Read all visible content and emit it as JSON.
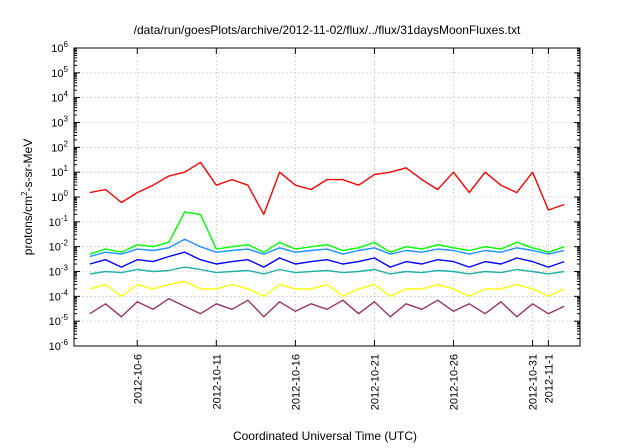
{
  "chart_data": {
    "type": "line",
    "title": "/data/run/goesPlots/archive/2012-11-02/flux/../flux/31daysMoonFluxes.txt",
    "xlabel": "Coordinated Universal Time (UTC)",
    "ylabel": {
      "pre": "protons/cm",
      "sup": "2",
      "post": "-s-sr-MeV"
    },
    "y_scale": "log",
    "ylim": [
      1e-06,
      1000000.0
    ],
    "xlim": [
      "2012-10-02",
      "2012-11-03"
    ],
    "grid": true,
    "y_ticks": [
      {
        "base": "10",
        "exp": "-6"
      },
      {
        "base": "10",
        "exp": "-5"
      },
      {
        "base": "10",
        "exp": "-4"
      },
      {
        "base": "10",
        "exp": "-3"
      },
      {
        "base": "10",
        "exp": "-2"
      },
      {
        "base": "10",
        "exp": "-1"
      },
      {
        "base": "10",
        "exp": "0"
      },
      {
        "base": "10",
        "exp": "1"
      },
      {
        "base": "10",
        "exp": "2"
      },
      {
        "base": "10",
        "exp": "3"
      },
      {
        "base": "10",
        "exp": "4"
      },
      {
        "base": "10",
        "exp": "5"
      },
      {
        "base": "10",
        "exp": "6"
      }
    ],
    "x_ticks": [
      "2012-10-6",
      "2012-10-11",
      "2012-10-16",
      "2012-10-21",
      "2012-10-26",
      "2012-10-31",
      "2012-11-1"
    ],
    "series": [
      {
        "color": "#ff0000",
        "x": [
          "2012-10-03",
          "2012-10-04",
          "2012-10-05",
          "2012-10-06",
          "2012-10-07",
          "2012-10-08",
          "2012-10-09",
          "2012-10-10",
          "2012-10-11",
          "2012-10-12",
          "2012-10-13",
          "2012-10-14",
          "2012-10-15",
          "2012-10-16",
          "2012-10-17",
          "2012-10-18",
          "2012-10-19",
          "2012-10-20",
          "2012-10-21",
          "2012-10-22",
          "2012-10-23",
          "2012-10-24",
          "2012-10-25",
          "2012-10-26",
          "2012-10-27",
          "2012-10-28",
          "2012-10-29",
          "2012-10-30",
          "2012-10-31",
          "2012-11-01",
          "2012-11-02"
        ],
        "values": [
          1.5,
          2,
          0.6,
          1.5,
          3,
          7,
          10,
          25,
          3,
          5,
          3,
          0.2,
          10,
          3,
          2,
          5,
          5,
          3,
          8,
          10,
          15,
          5,
          2,
          10,
          1.5,
          10,
          3,
          1.5,
          10,
          0.3,
          0.5
        ]
      },
      {
        "color": "#00ff00",
        "x": [
          "2012-10-03",
          "2012-10-04",
          "2012-10-05",
          "2012-10-06",
          "2012-10-07",
          "2012-10-08",
          "2012-10-09",
          "2012-10-10",
          "2012-10-11",
          "2012-10-12",
          "2012-10-13",
          "2012-10-14",
          "2012-10-15",
          "2012-10-16",
          "2012-10-17",
          "2012-10-18",
          "2012-10-19",
          "2012-10-20",
          "2012-10-21",
          "2012-10-22",
          "2012-10-23",
          "2012-10-24",
          "2012-10-25",
          "2012-10-26",
          "2012-10-27",
          "2012-10-28",
          "2012-10-29",
          "2012-10-30",
          "2012-10-31",
          "2012-11-01",
          "2012-11-02"
        ],
        "values": [
          0.005,
          0.008,
          0.006,
          0.012,
          0.01,
          0.015,
          0.25,
          0.2,
          0.008,
          0.01,
          0.012,
          0.006,
          0.015,
          0.008,
          0.01,
          0.012,
          0.007,
          0.009,
          0.015,
          0.006,
          0.01,
          0.008,
          0.012,
          0.009,
          0.007,
          0.01,
          0.008,
          0.015,
          0.009,
          0.006,
          0.01
        ]
      },
      {
        "color": "#1e90ff",
        "x": [
          "2012-10-03",
          "2012-10-04",
          "2012-10-05",
          "2012-10-06",
          "2012-10-07",
          "2012-10-08",
          "2012-10-09",
          "2012-10-10",
          "2012-10-11",
          "2012-10-12",
          "2012-10-13",
          "2012-10-14",
          "2012-10-15",
          "2012-10-16",
          "2012-10-17",
          "2012-10-18",
          "2012-10-19",
          "2012-10-20",
          "2012-10-21",
          "2012-10-22",
          "2012-10-23",
          "2012-10-24",
          "2012-10-25",
          "2012-10-26",
          "2012-10-27",
          "2012-10-28",
          "2012-10-29",
          "2012-10-30",
          "2012-10-31",
          "2012-11-01",
          "2012-11-02"
        ],
        "values": [
          0.004,
          0.006,
          0.005,
          0.008,
          0.007,
          0.009,
          0.02,
          0.01,
          0.006,
          0.007,
          0.008,
          0.005,
          0.009,
          0.006,
          0.007,
          0.008,
          0.005,
          0.007,
          0.009,
          0.005,
          0.007,
          0.006,
          0.008,
          0.007,
          0.005,
          0.007,
          0.006,
          0.009,
          0.007,
          0.005,
          0.007
        ]
      },
      {
        "color": "#0000ff",
        "x": [
          "2012-10-03",
          "2012-10-04",
          "2012-10-05",
          "2012-10-06",
          "2012-10-07",
          "2012-10-08",
          "2012-10-09",
          "2012-10-10",
          "2012-10-11",
          "2012-10-12",
          "2012-10-13",
          "2012-10-14",
          "2012-10-15",
          "2012-10-16",
          "2012-10-17",
          "2012-10-18",
          "2012-10-19",
          "2012-10-20",
          "2012-10-21",
          "2012-10-22",
          "2012-10-23",
          "2012-10-24",
          "2012-10-25",
          "2012-10-26",
          "2012-10-27",
          "2012-10-28",
          "2012-10-29",
          "2012-10-30",
          "2012-10-31",
          "2012-11-01",
          "2012-11-02"
        ],
        "values": [
          0.002,
          0.003,
          0.0015,
          0.003,
          0.0025,
          0.004,
          0.006,
          0.003,
          0.002,
          0.0025,
          0.003,
          0.0015,
          0.0035,
          0.002,
          0.0025,
          0.003,
          0.002,
          0.0025,
          0.0035,
          0.0015,
          0.0025,
          0.002,
          0.003,
          0.0025,
          0.0015,
          0.0025,
          0.002,
          0.0035,
          0.0025,
          0.0015,
          0.0025
        ]
      },
      {
        "color": "#20b2aa",
        "x": [
          "2012-10-03",
          "2012-10-04",
          "2012-10-05",
          "2012-10-06",
          "2012-10-07",
          "2012-10-08",
          "2012-10-09",
          "2012-10-10",
          "2012-10-11",
          "2012-10-12",
          "2012-10-13",
          "2012-10-14",
          "2012-10-15",
          "2012-10-16",
          "2012-10-17",
          "2012-10-18",
          "2012-10-19",
          "2012-10-20",
          "2012-10-21",
          "2012-10-22",
          "2012-10-23",
          "2012-10-24",
          "2012-10-25",
          "2012-10-26",
          "2012-10-27",
          "2012-10-28",
          "2012-10-29",
          "2012-10-30",
          "2012-10-31",
          "2012-11-01",
          "2012-11-02"
        ],
        "values": [
          0.0008,
          0.001,
          0.0009,
          0.0012,
          0.001,
          0.0011,
          0.0015,
          0.0012,
          0.0009,
          0.001,
          0.0011,
          0.0008,
          0.0012,
          0.0009,
          0.001,
          0.0011,
          0.0009,
          0.001,
          0.0012,
          0.0008,
          0.001,
          0.0009,
          0.0011,
          0.001,
          0.0008,
          0.001,
          0.0009,
          0.0012,
          0.001,
          0.0008,
          0.001
        ]
      },
      {
        "color": "#ffff00",
        "x": [
          "2012-10-03",
          "2012-10-04",
          "2012-10-05",
          "2012-10-06",
          "2012-10-07",
          "2012-10-08",
          "2012-10-09",
          "2012-10-10",
          "2012-10-11",
          "2012-10-12",
          "2012-10-13",
          "2012-10-14",
          "2012-10-15",
          "2012-10-16",
          "2012-10-17",
          "2012-10-18",
          "2012-10-19",
          "2012-10-20",
          "2012-10-21",
          "2012-10-22",
          "2012-10-23",
          "2012-10-24",
          "2012-10-25",
          "2012-10-26",
          "2012-10-27",
          "2012-10-28",
          "2012-10-29",
          "2012-10-30",
          "2012-10-31",
          "2012-11-01",
          "2012-11-02"
        ],
        "values": [
          0.0002,
          0.0003,
          0.0001,
          0.0003,
          0.0002,
          0.0003,
          0.0004,
          0.0002,
          0.0002,
          0.0003,
          0.0002,
          0.0001,
          0.0003,
          0.0002,
          0.0002,
          0.0003,
          0.0001,
          0.0002,
          0.0003,
          0.0001,
          0.0002,
          0.0002,
          0.0003,
          0.0002,
          0.0001,
          0.0002,
          0.0002,
          0.0003,
          0.0002,
          0.0001,
          0.0002
        ]
      },
      {
        "color": "#993366",
        "x": [
          "2012-10-03",
          "2012-10-04",
          "2012-10-05",
          "2012-10-06",
          "2012-10-07",
          "2012-10-08",
          "2012-10-09",
          "2012-10-10",
          "2012-10-11",
          "2012-10-12",
          "2012-10-13",
          "2012-10-14",
          "2012-10-15",
          "2012-10-16",
          "2012-10-17",
          "2012-10-18",
          "2012-10-19",
          "2012-10-20",
          "2012-10-21",
          "2012-10-22",
          "2012-10-23",
          "2012-10-24",
          "2012-10-25",
          "2012-10-26",
          "2012-10-27",
          "2012-10-28",
          "2012-10-29",
          "2012-10-30",
          "2012-10-31",
          "2012-11-01",
          "2012-11-02"
        ],
        "values": [
          2e-05,
          5e-05,
          1.5e-05,
          6e-05,
          3e-05,
          8e-05,
          4e-05,
          2e-05,
          5e-05,
          3e-05,
          7e-05,
          1.5e-05,
          6e-05,
          2.5e-05,
          5e-05,
          3e-05,
          7e-05,
          2e-05,
          6e-05,
          1.5e-05,
          5e-05,
          3e-05,
          7e-05,
          2.5e-05,
          5e-05,
          2e-05,
          6e-05,
          1.5e-05,
          5e-05,
          2e-05,
          4e-05
        ]
      }
    ]
  }
}
